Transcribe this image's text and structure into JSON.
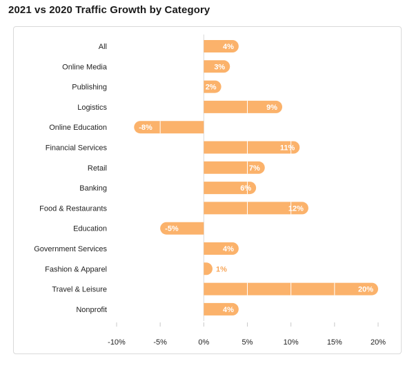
{
  "page": {
    "title": "2021 vs 2020 Traffic Growth by Category"
  },
  "colors": {
    "bar": "#fbb26b",
    "bar_divider": "#ffffff",
    "label_inside": "#ffffff",
    "label_outside": "#f7a65a",
    "axis_zero": "#d9d9d9",
    "tick": "#c8c8c8"
  },
  "chart_data": {
    "type": "bar",
    "orientation": "horizontal",
    "title": "2021 vs 2020 Traffic Growth by Category",
    "xlabel": "",
    "ylabel": "",
    "categories": [
      "All",
      "Online Media",
      "Publishing",
      "Logistics",
      "Online Education",
      "Financial Services",
      "Retail",
      "Banking",
      "Food & Restaurants",
      "Education",
      "Government Services",
      "Fashion & Apparel",
      "Travel & Leisure",
      "Nonprofit"
    ],
    "values": [
      4,
      3,
      2,
      9,
      -8,
      11,
      7,
      6,
      12,
      -5,
      4,
      1,
      20,
      4
    ],
    "value_labels": [
      "4%",
      "3%",
      "2%",
      "9%",
      "-8%",
      "11%",
      "7%",
      "6%",
      "12%",
      "-5%",
      "4%",
      "1%",
      "20%",
      "4%"
    ],
    "xlim": [
      -10,
      20
    ],
    "xticks": [
      -10,
      -5,
      0,
      5,
      10,
      15,
      20
    ],
    "xtick_labels": [
      "-10%",
      "-5%",
      "0%",
      "5%",
      "10%",
      "15%",
      "20%"
    ],
    "grid": false,
    "legend": false
  }
}
